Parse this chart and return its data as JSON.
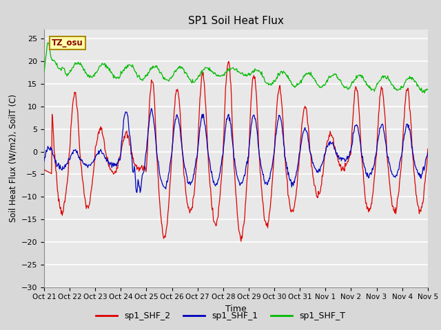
{
  "title": "SP1 Soil Heat Flux",
  "xlabel": "Time",
  "ylabel": "Soil Heat Flux (W/m2), SoilT (C)",
  "ylim": [
    -30,
    27
  ],
  "yticks": [
    -30,
    -25,
    -20,
    -15,
    -10,
    -5,
    0,
    5,
    10,
    15,
    20,
    25
  ],
  "bg_color": "#d8d8d8",
  "plot_bg_color": "#e8e8e8",
  "grid_color": "#ffffff",
  "tz_label": "TZ_osu",
  "tz_box_facecolor": "#ffffaa",
  "tz_box_edgecolor": "#aa8800",
  "tz_text_color": "#880000",
  "legend_entries": [
    "sp1_SHF_2",
    "sp1_SHF_1",
    "sp1_SHF_T"
  ],
  "line_colors": [
    "#dd0000",
    "#0000bb",
    "#00bb00"
  ],
  "x_tick_labels": [
    "Oct 21",
    "Oct 22",
    "Oct 23",
    "Oct 24",
    "Oct 25",
    "Oct 26",
    "Oct 27",
    "Oct 28",
    "Oct 29",
    "Oct 30",
    "Oct 31",
    "Nov 1",
    "Nov 2",
    "Nov 3",
    "Nov 4",
    "Nov 5"
  ],
  "duration_days": 15
}
